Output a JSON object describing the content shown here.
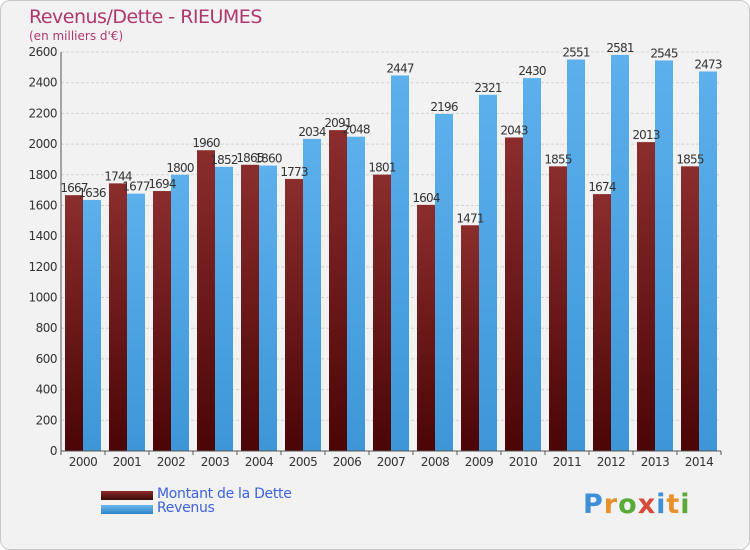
{
  "chart_data": {
    "type": "bar",
    "title": "Revenus/Dette - RIEUMES",
    "subtitle": "(en milliers d'€)",
    "categories": [
      "2000",
      "2001",
      "2002",
      "2003",
      "2004",
      "2005",
      "2006",
      "2007",
      "2008",
      "2009",
      "2010",
      "2011",
      "2012",
      "2013",
      "2014"
    ],
    "series": [
      {
        "name": "Montant de la Dette",
        "color": "#8b2a2a",
        "values": [
          1667,
          1744,
          1694,
          1960,
          1865,
          1773,
          2091,
          1801,
          1604,
          1471,
          2043,
          1855,
          1674,
          2013,
          1855
        ],
        "labels": [
          "1667",
          "1744",
          "1694",
          "1960",
          "1865",
          "1773",
          "2091",
          "1801",
          "1604",
          "1471",
          "2043",
          "1855",
          "1674",
          "2013",
          "1855"
        ]
      },
      {
        "name": "Revenus",
        "color": "#4ca6e6",
        "values": [
          1636,
          1677,
          1800,
          1852,
          1860,
          2034,
          2048,
          2447,
          2196,
          2321,
          2430,
          2551,
          2581,
          2545,
          2473
        ],
        "labels": [
          "1636",
          "1677",
          "1800",
          "1852",
          "1860",
          "2034",
          "2048",
          "2447",
          "2196",
          "2321",
          "2430",
          "2551",
          "2581",
          "2545",
          "2473"
        ]
      }
    ],
    "ylim": [
      0,
      2600
    ],
    "yticks": [
      0,
      200,
      400,
      600,
      800,
      1000,
      1200,
      1400,
      1600,
      1800,
      2000,
      2200,
      2400,
      2600
    ],
    "xlabel": "",
    "ylabel": "",
    "grid": true,
    "legend": "bottom-left"
  },
  "logo": {
    "letters": [
      "P",
      "r",
      "o",
      "x",
      "i",
      "t",
      "i"
    ],
    "colors": [
      "#3e8fd9",
      "#e8902c",
      "#5aaa3a",
      "#d84a3a",
      "#3e8fd9",
      "#e8902c",
      "#5aaa3a"
    ]
  }
}
